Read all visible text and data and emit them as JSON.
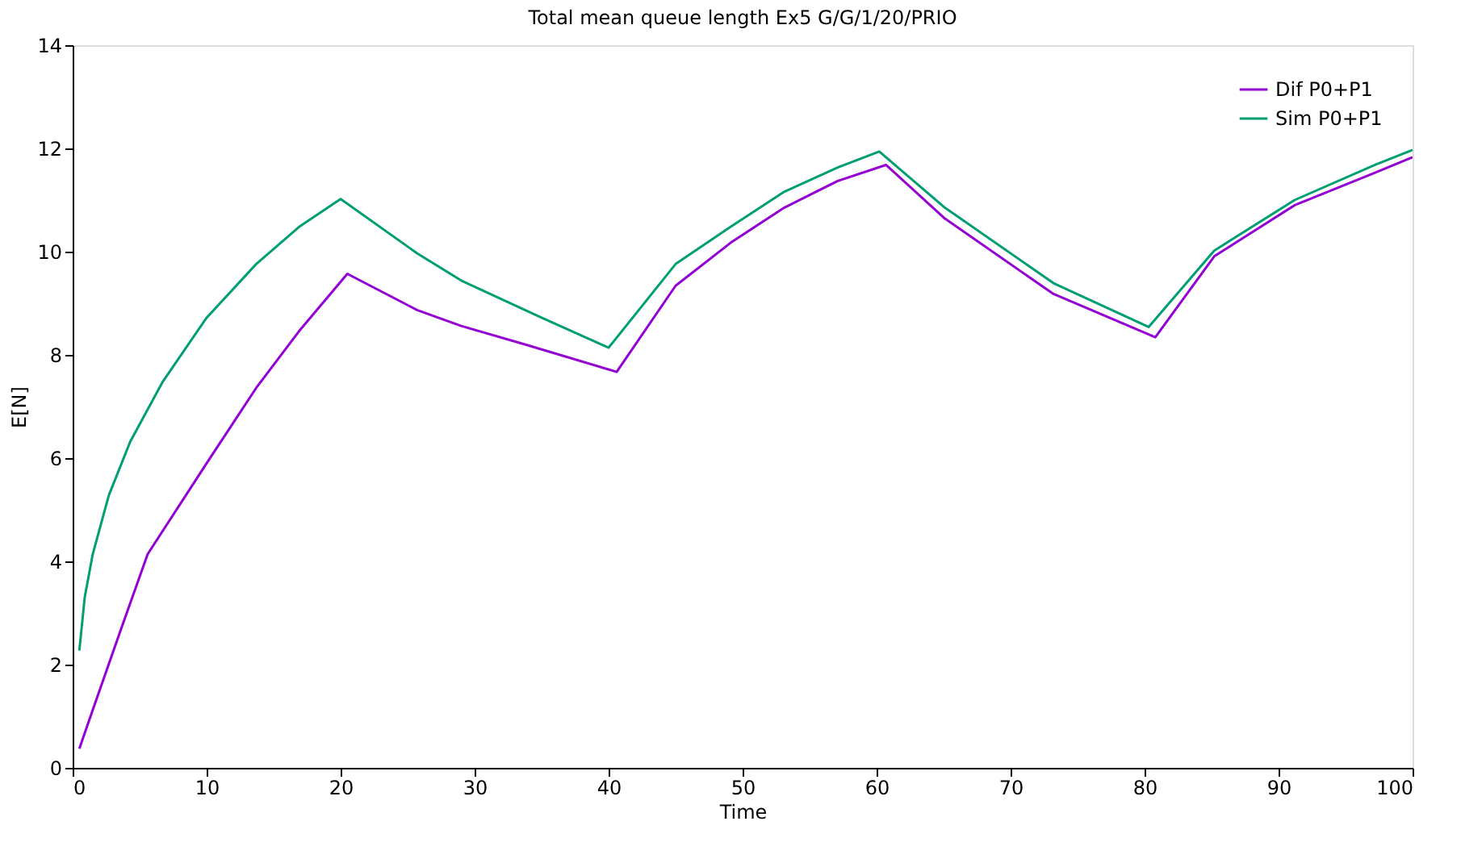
{
  "chart_data": {
    "type": "line",
    "title": "Total mean queue length Ex5 G/G/1/20/PRIO",
    "xlabel": "Time",
    "ylabel": "E[N]",
    "xlim": [
      0,
      100
    ],
    "xticks": [
      0,
      10,
      20,
      30,
      40,
      50,
      60,
      70,
      80,
      90,
      100
    ],
    "ylim": [
      0,
      14
    ],
    "yticks": [
      0,
      2,
      4,
      6,
      8,
      10,
      12,
      14
    ],
    "grid": false,
    "legend": "top right",
    "marker": "none",
    "line_style": "solid",
    "series": [
      {
        "name": "Dif P0+P1",
        "color": "#9400d3",
        "x": [
          0.5,
          1.5,
          3.6,
          5.6,
          10,
          13.7,
          16.9,
          20.5,
          25.7,
          29,
          33.8,
          40.6,
          45,
          49.1,
          53.1,
          57.1,
          60.7,
          65.1,
          73.2,
          80.8,
          85.2,
          91.2,
          97.2,
          100
        ],
        "values": [
          0.37,
          1.12,
          2.68,
          4.14,
          5.9,
          7.36,
          8.46,
          9.57,
          8.87,
          8.56,
          8.2,
          7.67,
          9.34,
          10.17,
          10.85,
          11.37,
          11.68,
          10.64,
          9.18,
          8.34,
          9.91,
          10.9,
          11.53,
          11.83
        ]
      },
      {
        "name": "Sim P0+P1",
        "color": "#009e73",
        "x": [
          0.5,
          0.9,
          1.5,
          2.7,
          4.3,
          6.7,
          10,
          13.7,
          16.9,
          20,
          25.7,
          29,
          35,
          40,
          45,
          49.1,
          53.1,
          57.1,
          60.2,
          65.1,
          73.2,
          80.3,
          85.2,
          91.2,
          97.2,
          100
        ],
        "values": [
          2.27,
          3.3,
          4.14,
          5.28,
          6.32,
          7.47,
          8.72,
          9.76,
          10.48,
          11.02,
          9.97,
          9.44,
          8.72,
          8.14,
          9.76,
          10.48,
          11.16,
          11.63,
          11.94,
          10.85,
          9.39,
          8.54,
          10.02,
          11.0,
          11.68,
          11.97
        ]
      }
    ]
  }
}
